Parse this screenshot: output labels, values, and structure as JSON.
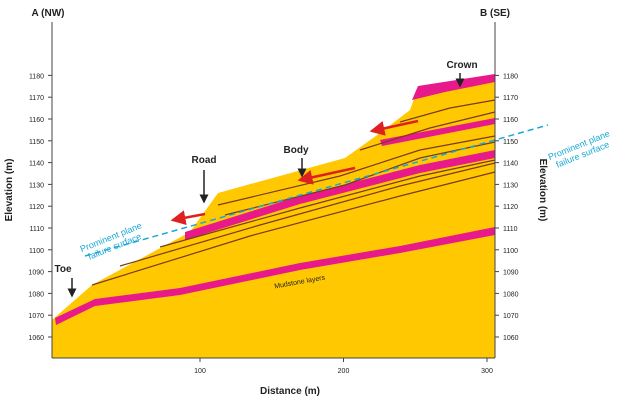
{
  "header": {
    "left_end": "A (NW)",
    "right_end": "B (SE)"
  },
  "axes": {
    "x_label": "Distance (m)",
    "y_label": "Elevation (m)",
    "elevation_ticks": [
      1060,
      1070,
      1080,
      1090,
      1100,
      1110,
      1120,
      1130,
      1140,
      1150,
      1160,
      1170,
      1180
    ],
    "distance_ticks": [
      100,
      200,
      300
    ]
  },
  "labels": {
    "crown": "Crown",
    "road": "Road",
    "body": "Body",
    "toe": "Toe",
    "failure_surface_left": [
      "Prominent plane",
      "failure surface"
    ],
    "failure_surface_right": [
      "Prominent plane",
      "failure surface"
    ],
    "mudstone": "Mudstone layers"
  }
}
